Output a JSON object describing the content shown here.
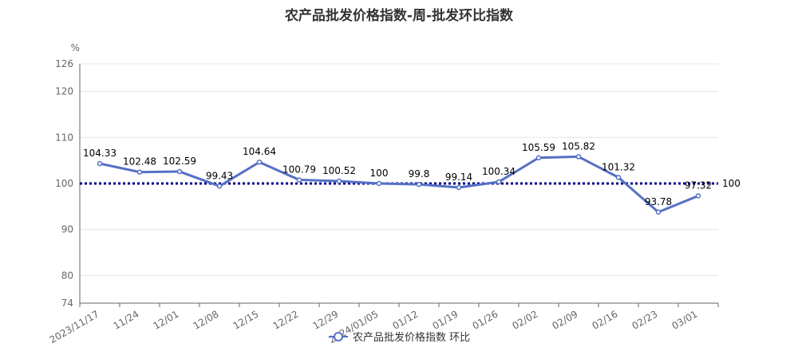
{
  "chart_data": {
    "type": "line",
    "title": "农产品批发价格指数-周-批发环比指数",
    "y_unit": "%",
    "ylim": [
      74,
      126
    ],
    "yticks": [
      74,
      80,
      90,
      100,
      110,
      120,
      126
    ],
    "categories": [
      "2023/11/17",
      "11/24",
      "12/01",
      "12/08",
      "12/15",
      "12/22",
      "12/29",
      "2024/01/05",
      "01/12",
      "01/19",
      "01/26",
      "02/02",
      "02/09",
      "02/16",
      "02/23",
      "03/01"
    ],
    "series": [
      {
        "name": "农产品批发价格指数 环比",
        "color": "#5470c6",
        "values": [
          104.33,
          102.48,
          102.59,
          99.43,
          104.64,
          100.79,
          100.52,
          100,
          99.8,
          99.14,
          100.34,
          105.59,
          105.82,
          101.32,
          93.78,
          97.32
        ],
        "labels": [
          "104.33",
          "102.48",
          "102.59",
          "99.43",
          "104.64",
          "100.79",
          "100.52",
          "100",
          "99.8",
          "99.14",
          "100.34",
          "105.59",
          "105.82",
          "101.32",
          "93.78",
          "97.32"
        ]
      }
    ],
    "reference_line": {
      "value": 100,
      "label": "100",
      "color": "#00008b",
      "style": "dotted"
    },
    "legend_position": "bottom-center",
    "grid": "horizontal"
  }
}
